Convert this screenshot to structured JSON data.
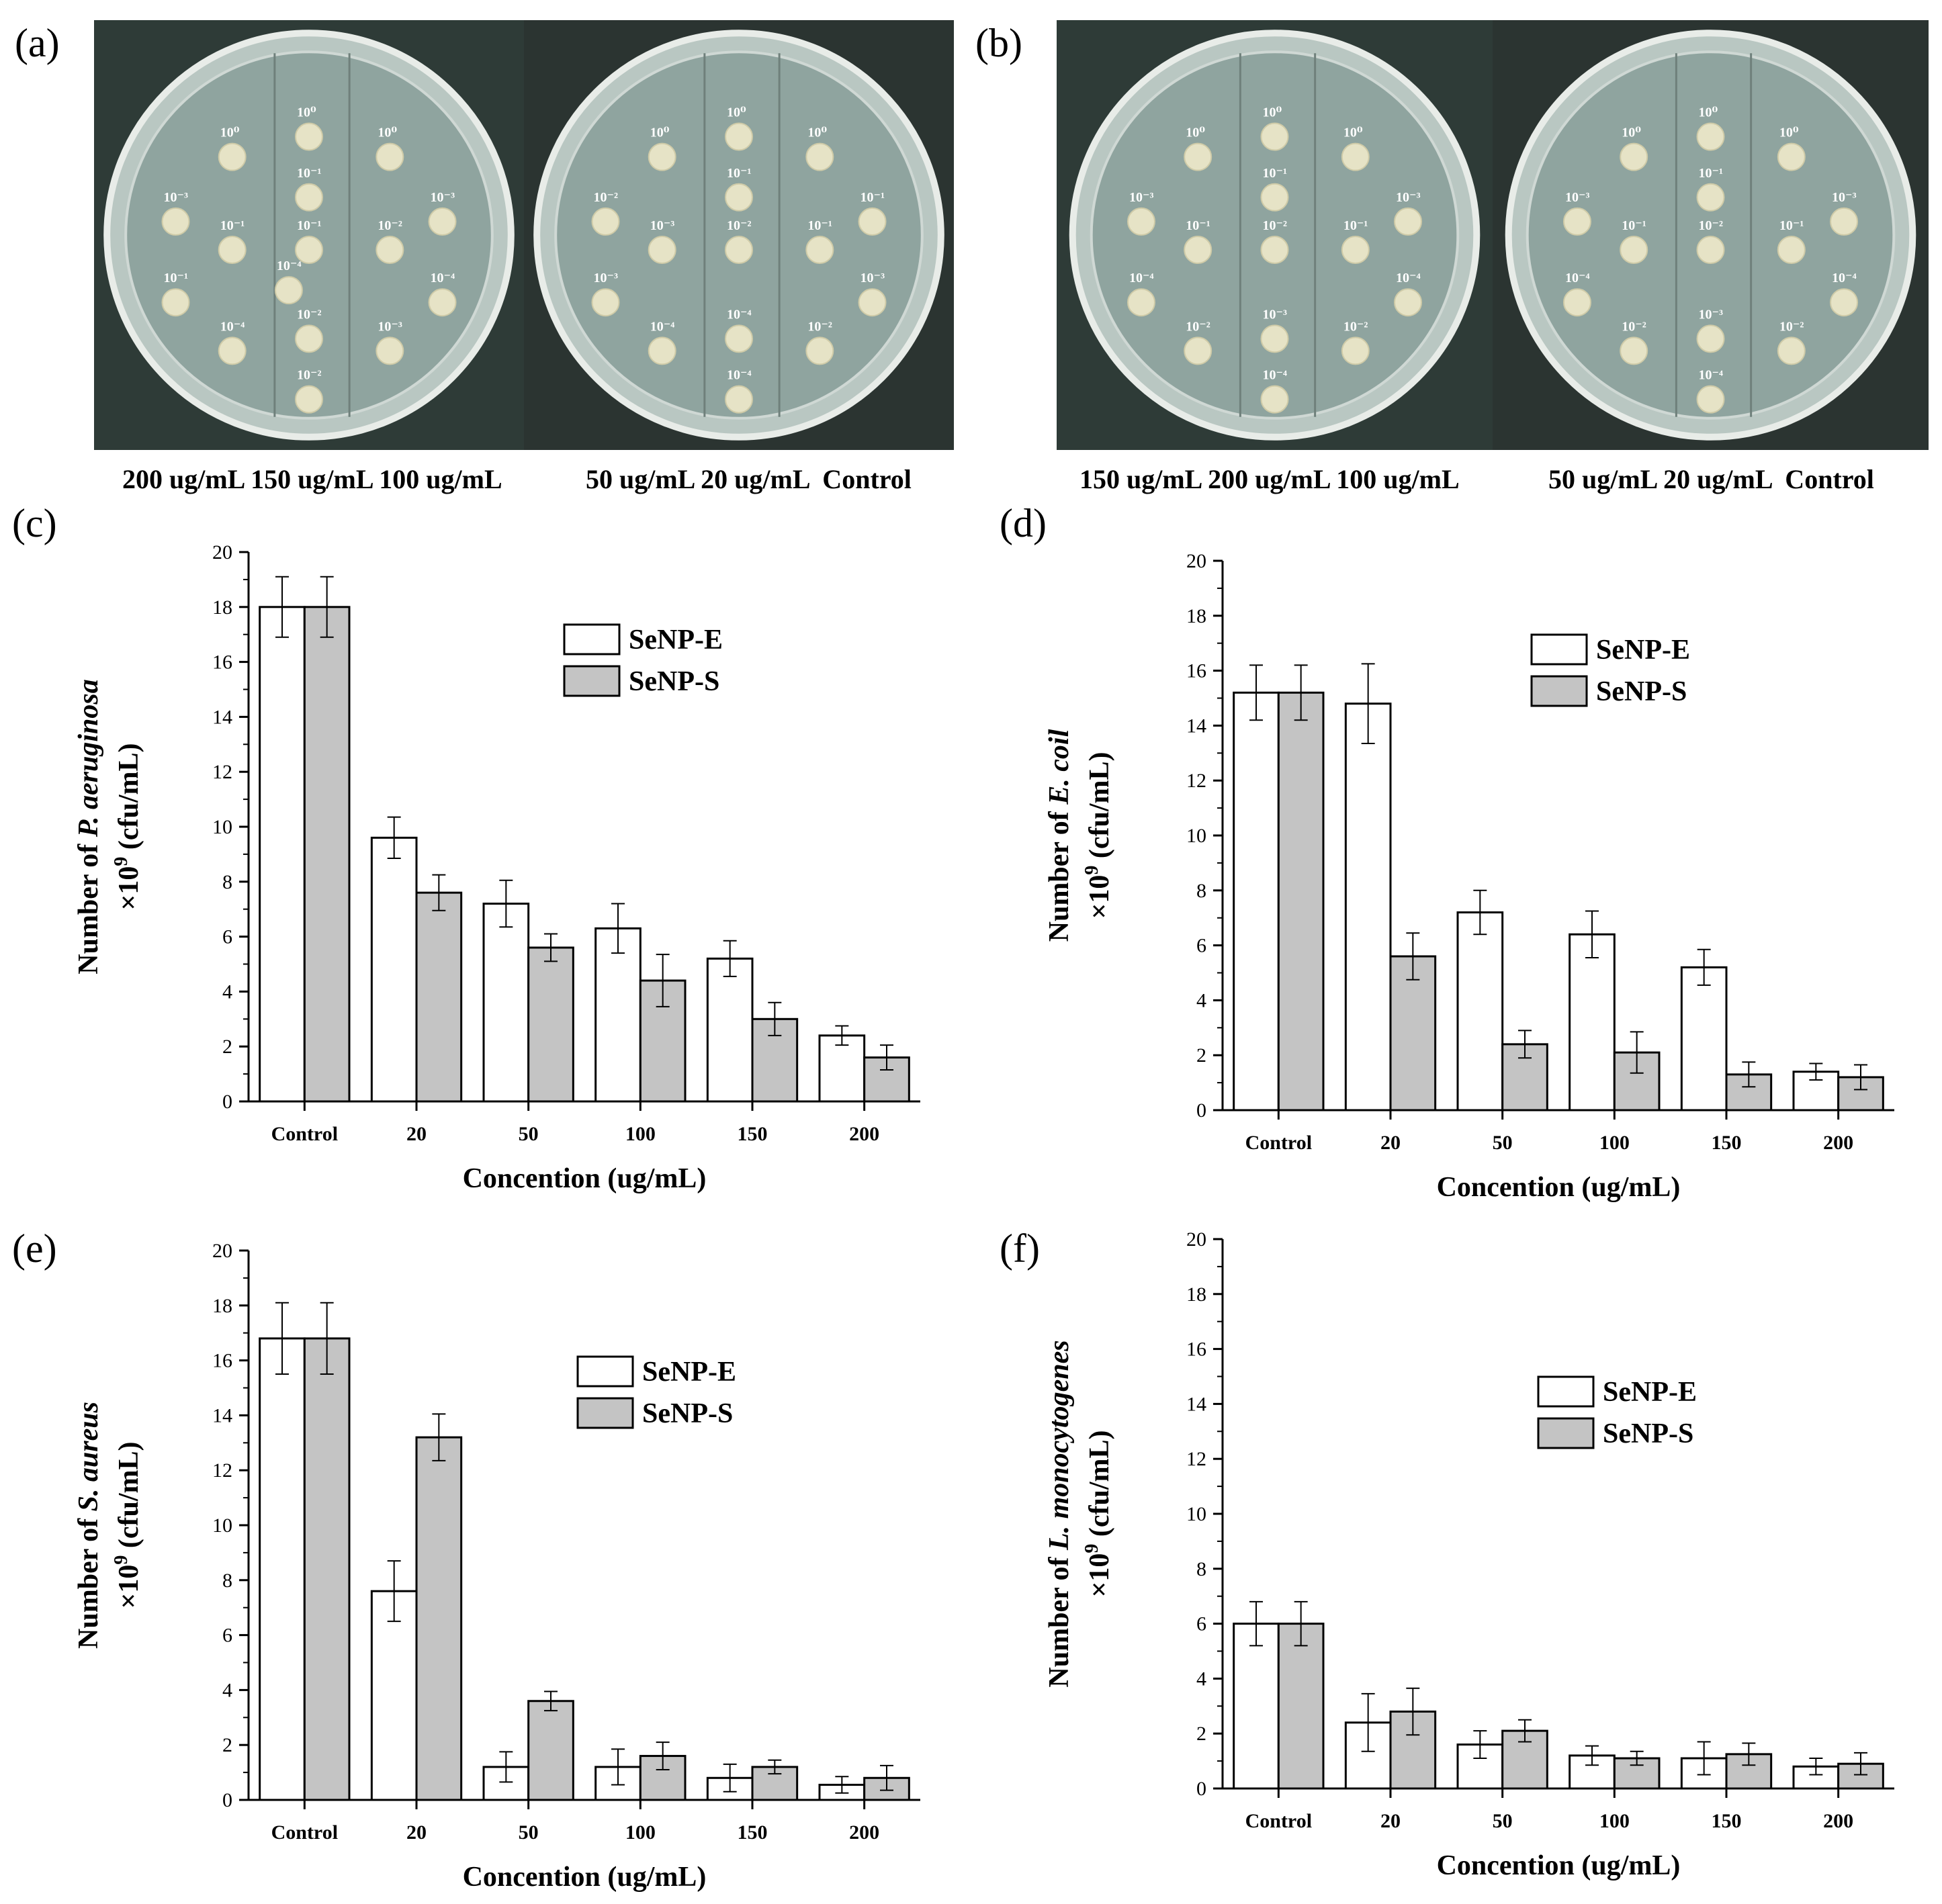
{
  "panels": {
    "a": {
      "letter": "(a)",
      "caption_left": "200 ug/mL 150 ug/mL 100 ug/mL",
      "caption_right": "50 ug/mL 20 ug/mL  Control",
      "plate_left_labels": [
        "10⁰",
        "10⁰",
        "10⁰",
        "10⁻³",
        "10⁻¹",
        "10⁻³",
        "10⁻¹",
        "10⁻¹",
        "10⁻²",
        "10⁻¹",
        "10⁻⁴",
        "10⁻⁴",
        "10⁻²",
        "10⁻³",
        "10⁻²",
        "10⁻⁴"
      ],
      "plate_right_labels": [
        "10⁰",
        "10⁰",
        "10⁰",
        "10⁻²",
        "10⁻¹",
        "10⁻¹",
        "10⁻³",
        "10⁻²",
        "10⁻¹",
        "10⁻³",
        "10⁻³",
        "10⁻⁴",
        "10⁻⁴",
        "10⁻²",
        "10⁻⁴"
      ]
    },
    "b": {
      "letter": "(b)",
      "caption_left": "150 ug/mL 200 ug/mL 100 ug/mL",
      "caption_right": "50 ug/mL 20 ug/mL  Control",
      "plate_left_labels": [
        "10⁰",
        "10⁰",
        "10⁰",
        "10⁻³",
        "10⁻¹",
        "10⁻³",
        "10⁻¹",
        "10⁻²",
        "10⁻¹",
        "10⁻⁴",
        "10⁻⁴",
        "10⁻²",
        "10⁻³",
        "10⁻²",
        "10⁻⁴"
      ],
      "plate_right_labels": [
        "10⁰",
        "10⁰",
        "10⁰",
        "10⁻³",
        "10⁻¹",
        "10⁻³",
        "10⁻¹",
        "10⁻²",
        "10⁻¹",
        "10⁻⁴",
        "10⁻⁴",
        "10⁻²",
        "10⁻³",
        "10⁻²",
        "10⁻⁴"
      ]
    },
    "c": {
      "letter": "(c)"
    },
    "d": {
      "letter": "(d)"
    },
    "e": {
      "letter": "(e)"
    },
    "f": {
      "letter": "(f)"
    }
  },
  "colors": {
    "series1": "#ffffff",
    "series2": "#c4c4c4",
    "stroke": "#000000"
  },
  "chart_data": [
    {
      "id": "c",
      "type": "bar",
      "categories": [
        "Control",
        "20",
        "50",
        "100",
        "150",
        "200"
      ],
      "series": [
        {
          "name": "SeNP-E",
          "values": [
            18.0,
            9.6,
            7.2,
            6.3,
            5.2,
            2.4
          ],
          "errors": [
            1.1,
            0.75,
            0.85,
            0.9,
            0.65,
            0.35
          ]
        },
        {
          "name": "SeNP-S",
          "values": [
            18.0,
            7.6,
            5.6,
            4.4,
            3.0,
            1.6
          ],
          "errors": [
            1.1,
            0.65,
            0.5,
            0.95,
            0.6,
            0.45
          ]
        }
      ],
      "ylim": [
        0,
        20
      ],
      "yticks": [
        0,
        2,
        4,
        6,
        8,
        10,
        12,
        14,
        16,
        18,
        20
      ],
      "xlabel": "Concention (ug/mL)",
      "ylabel_pre": "Number of ",
      "ylabel_species": "P. aeruginosa",
      "ylabel_unit": "(cfu/mL)",
      "ylabel_mult": "×10",
      "ylabel_exp": "9",
      "legend": "top-right",
      "grid": false
    },
    {
      "id": "d",
      "type": "bar",
      "categories": [
        "Control",
        "20",
        "50",
        "100",
        "150",
        "200"
      ],
      "series": [
        {
          "name": "SeNP-E",
          "values": [
            15.2,
            14.8,
            7.2,
            6.4,
            5.2,
            1.4
          ],
          "errors": [
            1.0,
            1.45,
            0.8,
            0.85,
            0.65,
            0.3
          ]
        },
        {
          "name": "SeNP-S",
          "values": [
            15.2,
            5.6,
            2.4,
            2.1,
            1.3,
            1.2
          ],
          "errors": [
            1.0,
            0.85,
            0.5,
            0.75,
            0.45,
            0.45
          ]
        }
      ],
      "ylim": [
        0,
        20
      ],
      "yticks": [
        0,
        2,
        4,
        6,
        8,
        10,
        12,
        14,
        16,
        18,
        20
      ],
      "xlabel": "Concention (ug/mL)",
      "ylabel_pre": "Number of ",
      "ylabel_species": "E. coil",
      "ylabel_unit": "(cfu/mL)",
      "ylabel_mult": "×10",
      "ylabel_exp": "9",
      "legend": "top-right",
      "grid": false
    },
    {
      "id": "e",
      "type": "bar",
      "categories": [
        "Control",
        "20",
        "50",
        "100",
        "150",
        "200"
      ],
      "series": [
        {
          "name": "SeNP-E",
          "values": [
            16.8,
            7.6,
            1.2,
            1.2,
            0.8,
            0.55
          ],
          "errors": [
            1.3,
            1.1,
            0.55,
            0.65,
            0.5,
            0.3
          ]
        },
        {
          "name": "SeNP-S",
          "values": [
            16.8,
            13.2,
            3.6,
            1.6,
            1.2,
            0.8
          ],
          "errors": [
            1.3,
            0.85,
            0.35,
            0.5,
            0.25,
            0.45
          ]
        }
      ],
      "ylim": [
        0,
        20
      ],
      "yticks": [
        0,
        2,
        4,
        6,
        8,
        10,
        12,
        14,
        16,
        18,
        20
      ],
      "xlabel": "Concention (ug/mL)",
      "ylabel_pre": "Number of ",
      "ylabel_species": "S. aureus",
      "ylabel_unit": "(cfu/mL)",
      "ylabel_mult": "×10",
      "ylabel_exp": "9",
      "legend": "top-right",
      "grid": false
    },
    {
      "id": "f",
      "type": "bar",
      "categories": [
        "Control",
        "20",
        "50",
        "100",
        "150",
        "200"
      ],
      "series": [
        {
          "name": "SeNP-E",
          "values": [
            6.0,
            2.4,
            1.6,
            1.2,
            1.1,
            0.8
          ],
          "errors": [
            0.8,
            1.05,
            0.5,
            0.35,
            0.6,
            0.3
          ]
        },
        {
          "name": "SeNP-S",
          "values": [
            6.0,
            2.8,
            2.1,
            1.1,
            1.25,
            0.9
          ],
          "errors": [
            0.8,
            0.85,
            0.4,
            0.25,
            0.4,
            0.4
          ]
        }
      ],
      "ylim": [
        0,
        20
      ],
      "yticks": [
        0,
        2,
        4,
        6,
        8,
        10,
        12,
        14,
        16,
        18,
        20
      ],
      "xlabel": "Concention (ug/mL)",
      "ylabel_pre": "Number of ",
      "ylabel_species": "L. monocytogenes",
      "ylabel_unit": "(cfu/mL)",
      "ylabel_mult": "×10",
      "ylabel_exp": "9",
      "legend": "top-right",
      "grid": false
    }
  ]
}
